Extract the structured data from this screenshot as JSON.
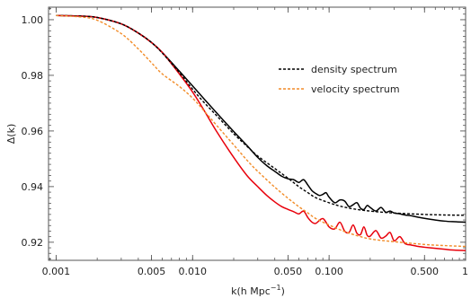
{
  "chart_data": {
    "type": "line",
    "title": "",
    "xlabel": "k(h Mpc",
    "xlabel_sup": "−1",
    "xlabel_close": ")",
    "ylabel": "Δ(k)",
    "xscale": "log",
    "xlim": [
      0.00088,
      1.0
    ],
    "ylim": [
      0.9135,
      1.0045
    ],
    "x_ticks": [
      {
        "value": 0.001,
        "label": "0.001"
      },
      {
        "value": 0.005,
        "label": "0.005"
      },
      {
        "value": 0.01,
        "label": "0.010"
      },
      {
        "value": 0.05,
        "label": "0.050"
      },
      {
        "value": 0.1,
        "label": "0.100"
      },
      {
        "value": 0.5,
        "label": "0.500"
      },
      {
        "value": 1.0,
        "label": "1"
      }
    ],
    "y_ticks": [
      {
        "value": 0.92,
        "label": "0.92"
      },
      {
        "value": 0.94,
        "label": "0.94"
      },
      {
        "value": 0.96,
        "label": "0.96"
      },
      {
        "value": 0.98,
        "label": "0.98"
      },
      {
        "value": 1.0,
        "label": "1.00"
      }
    ],
    "grid": false,
    "legend_position": "top-right",
    "series": [
      {
        "key": "black-solid",
        "color": "#000000",
        "dash": "solid",
        "x": [
          0.001,
          0.0015,
          0.002,
          0.003,
          0.004,
          0.005,
          0.006,
          0.008,
          0.01,
          0.012,
          0.015,
          0.02,
          0.025,
          0.03,
          0.035,
          0.04,
          0.045,
          0.05,
          0.055,
          0.06,
          0.065,
          0.07,
          0.075,
          0.08,
          0.085,
          0.09,
          0.095,
          0.1,
          0.11,
          0.12,
          0.13,
          0.14,
          0.15,
          0.16,
          0.17,
          0.18,
          0.19,
          0.2,
          0.22,
          0.24,
          0.26,
          0.28,
          0.3,
          0.33,
          0.36,
          0.4,
          0.45,
          0.5,
          0.6,
          0.7,
          0.8,
          1.0
        ],
        "y": [
          1.0015,
          1.0013,
          1.0008,
          0.9985,
          0.9952,
          0.9918,
          0.9882,
          0.9815,
          0.9762,
          0.9718,
          0.9665,
          0.9598,
          0.9548,
          0.9505,
          0.9475,
          0.9455,
          0.9437,
          0.9428,
          0.9425,
          0.9415,
          0.9425,
          0.9405,
          0.9385,
          0.9375,
          0.9368,
          0.9372,
          0.9378,
          0.9362,
          0.9342,
          0.9352,
          0.9348,
          0.9328,
          0.9335,
          0.9342,
          0.9322,
          0.9318,
          0.9332,
          0.9325,
          0.9312,
          0.9325,
          0.9308,
          0.9312,
          0.9305,
          0.9302,
          0.9298,
          0.9295,
          0.929,
          0.9286,
          0.928,
          0.9276,
          0.9274,
          0.9272
        ]
      },
      {
        "key": "red-solid",
        "color": "#e8000b",
        "dash": "solid",
        "x": [
          0.001,
          0.0015,
          0.002,
          0.003,
          0.004,
          0.005,
          0.006,
          0.008,
          0.01,
          0.012,
          0.015,
          0.02,
          0.025,
          0.03,
          0.035,
          0.04,
          0.045,
          0.05,
          0.055,
          0.06,
          0.065,
          0.07,
          0.075,
          0.08,
          0.09,
          0.1,
          0.11,
          0.12,
          0.13,
          0.14,
          0.15,
          0.16,
          0.17,
          0.18,
          0.19,
          0.2,
          0.22,
          0.24,
          0.26,
          0.28,
          0.3,
          0.33,
          0.36,
          0.4,
          0.45,
          0.5,
          0.6,
          0.7,
          0.8,
          1.0
        ],
        "y": [
          1.0015,
          1.0013,
          1.0008,
          0.9985,
          0.9952,
          0.9918,
          0.9882,
          0.9805,
          0.974,
          0.9678,
          0.9598,
          0.9505,
          0.944,
          0.94,
          0.9368,
          0.9345,
          0.9328,
          0.9318,
          0.931,
          0.9302,
          0.9312,
          0.9288,
          0.9272,
          0.9268,
          0.9285,
          0.9255,
          0.9248,
          0.9272,
          0.924,
          0.9235,
          0.9262,
          0.9232,
          0.9228,
          0.9255,
          0.9225,
          0.9222,
          0.9242,
          0.9215,
          0.9222,
          0.9235,
          0.9205,
          0.922,
          0.9195,
          0.919,
          0.9185,
          0.9182,
          0.9178,
          0.9175,
          0.9172,
          0.917
        ]
      },
      {
        "key": "density-spectrum",
        "name": "density spectrum",
        "color": "#000000",
        "dash": "dashed",
        "x": [
          0.001,
          0.0015,
          0.002,
          0.003,
          0.004,
          0.005,
          0.006,
          0.008,
          0.01,
          0.012,
          0.015,
          0.02,
          0.025,
          0.03,
          0.04,
          0.05,
          0.06,
          0.07,
          0.08,
          0.1,
          0.12,
          0.15,
          0.2,
          0.3,
          0.5,
          0.7,
          1.0
        ],
        "y": [
          1.0015,
          1.0013,
          1.0008,
          0.9985,
          0.9952,
          0.9918,
          0.988,
          0.981,
          0.975,
          0.9705,
          0.9655,
          0.959,
          0.9545,
          0.951,
          0.9465,
          0.943,
          0.94,
          0.9378,
          0.936,
          0.9342,
          0.933,
          0.932,
          0.9312,
          0.9305,
          0.93,
          0.9298,
          0.9297
        ]
      },
      {
        "key": "velocity-spectrum",
        "name": "velocity spectrum",
        "color": "#f28c28",
        "dash": "dashed",
        "x": [
          0.001,
          0.0015,
          0.002,
          0.003,
          0.004,
          0.005,
          0.006,
          0.008,
          0.01,
          0.012,
          0.015,
          0.02,
          0.025,
          0.03,
          0.04,
          0.05,
          0.06,
          0.07,
          0.08,
          0.1,
          0.12,
          0.15,
          0.2,
          0.3,
          0.5,
          0.7,
          1.0
        ],
        "y": [
          1.0015,
          1.001,
          0.9998,
          0.995,
          0.9895,
          0.9845,
          0.9805,
          0.976,
          0.9718,
          0.9675,
          0.962,
          0.955,
          0.9495,
          0.9455,
          0.9398,
          0.9358,
          0.9328,
          0.9305,
          0.9285,
          0.9262,
          0.9245,
          0.9228,
          0.9212,
          0.9202,
          0.9192,
          0.9188,
          0.9185
        ]
      }
    ],
    "legend": [
      {
        "series_key": "density-spectrum",
        "label": "density spectrum",
        "color": "#000000",
        "dash": "dashed"
      },
      {
        "series_key": "velocity-spectrum",
        "label": "velocity spectrum",
        "color": "#f28c28",
        "dash": "dashed"
      }
    ]
  }
}
